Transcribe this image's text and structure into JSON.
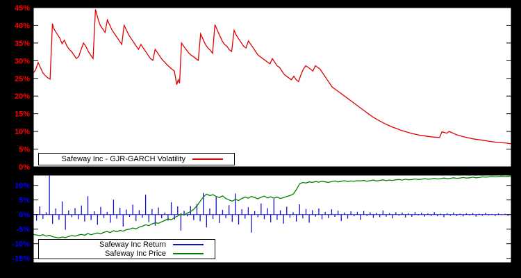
{
  "window": {
    "background_color": "#000000",
    "plot_background_color": "#ffffff"
  },
  "chart_data": [
    {
      "type": "line",
      "title": "Safeway Inc - GJR-GARCH Volatility",
      "xlabel": "",
      "ylabel": "",
      "ylim": [
        0,
        45
      ],
      "grid": false,
      "legend_position": "bottom-left",
      "tick_label_color": "#ff0000",
      "ytick_values": [
        0,
        5,
        10,
        15,
        20,
        25,
        30,
        35,
        40,
        45
      ],
      "ytick_labels": [
        "0%",
        "5%",
        "10%",
        "15%",
        "20%",
        "25%",
        "30%",
        "35%",
        "40%",
        "45%"
      ],
      "series": [
        {
          "name": "Safeway Inc - GJR-GARCH Volatility",
          "color": "#dd0000",
          "x_range": [
            0,
            100
          ],
          "points": [
            [
              0,
              26.5
            ],
            [
              0.5,
              27.5
            ],
            [
              1,
              29.5
            ],
            [
              1.5,
              28
            ],
            [
              2,
              26.5
            ],
            [
              2.5,
              25.8
            ],
            [
              3,
              25.2
            ],
            [
              3.5,
              24.8
            ],
            [
              4,
              40.5
            ],
            [
              4.3,
              39
            ],
            [
              5,
              37.5
            ],
            [
              5.5,
              36.5
            ],
            [
              6,
              34.8
            ],
            [
              6.5,
              35.8
            ],
            [
              7,
              34.2
            ],
            [
              7.5,
              33.2
            ],
            [
              8,
              32.6
            ],
            [
              8.5,
              31.6
            ],
            [
              9,
              30.6
            ],
            [
              9.5,
              31.2
            ],
            [
              10,
              33.2
            ],
            [
              10.5,
              35
            ],
            [
              11,
              34
            ],
            [
              11.5,
              32.6
            ],
            [
              12,
              31.6
            ],
            [
              12.5,
              30.6
            ],
            [
              13,
              44.5
            ],
            [
              13.3,
              43
            ],
            [
              13.6,
              41.5
            ],
            [
              14,
              40
            ],
            [
              14.5,
              39
            ],
            [
              15,
              38
            ],
            [
              15.5,
              41.5
            ],
            [
              16,
              40
            ],
            [
              16.5,
              38.6
            ],
            [
              17,
              37.6
            ],
            [
              17.5,
              36.6
            ],
            [
              18,
              35.6
            ],
            [
              18.5,
              34.6
            ],
            [
              19,
              40
            ],
            [
              19.5,
              38.6
            ],
            [
              20,
              37.2
            ],
            [
              20.5,
              36.2
            ],
            [
              21,
              35.2
            ],
            [
              21.5,
              34.2
            ],
            [
              22,
              33.2
            ],
            [
              22.5,
              34.6
            ],
            [
              23,
              33.6
            ],
            [
              23.5,
              32.6
            ],
            [
              24,
              31.6
            ],
            [
              24.5,
              30.6
            ],
            [
              25,
              30.1
            ],
            [
              25.5,
              33.2
            ],
            [
              26,
              32.2
            ],
            [
              26.5,
              31.2
            ],
            [
              27,
              30.2
            ],
            [
              27.5,
              29.6
            ],
            [
              28,
              28.8
            ],
            [
              28.5,
              28.2
            ],
            [
              29,
              27.6
            ],
            [
              29.5,
              27.1
            ],
            [
              30,
              23.2
            ],
            [
              30.3,
              24.6
            ],
            [
              30.6,
              23.6
            ],
            [
              31,
              35
            ],
            [
              31.5,
              34
            ],
            [
              32,
              33.1
            ],
            [
              32.5,
              32.2
            ],
            [
              33,
              31.6
            ],
            [
              33.5,
              31.1
            ],
            [
              34,
              30.6
            ],
            [
              34.5,
              30.1
            ],
            [
              35,
              37.6
            ],
            [
              35.5,
              36.1
            ],
            [
              36,
              34.6
            ],
            [
              36.5,
              33.6
            ],
            [
              37,
              33
            ],
            [
              37.5,
              32.1
            ],
            [
              38,
              40.2
            ],
            [
              38.5,
              38.6
            ],
            [
              39,
              37.1
            ],
            [
              39.5,
              35.6
            ],
            [
              40,
              34.6
            ],
            [
              40.5,
              34.1
            ],
            [
              41,
              33.1
            ],
            [
              41.5,
              32.6
            ],
            [
              42,
              38.6
            ],
            [
              42.5,
              37.1
            ],
            [
              43,
              36.1
            ],
            [
              43.5,
              35.1
            ],
            [
              44,
              34.1
            ],
            [
              44.5,
              33.6
            ],
            [
              45,
              35.6
            ],
            [
              45.5,
              34.6
            ],
            [
              46,
              33.6
            ],
            [
              46.5,
              32.6
            ],
            [
              47,
              31.6
            ],
            [
              47.5,
              31.1
            ],
            [
              48,
              30.6
            ],
            [
              48.5,
              30.1
            ],
            [
              49,
              29.6
            ],
            [
              49.5,
              29.1
            ],
            [
              50,
              30.6
            ],
            [
              50.5,
              29.6
            ],
            [
              51,
              28.6
            ],
            [
              51.5,
              28.1
            ],
            [
              52,
              27.1
            ],
            [
              52.5,
              26.1
            ],
            [
              53,
              25.6
            ],
            [
              53.5,
              25.1
            ],
            [
              54,
              24.6
            ],
            [
              54.5,
              25.6
            ],
            [
              55,
              24.6
            ],
            [
              55.5,
              24.1
            ],
            [
              56,
              26.1
            ],
            [
              56.5,
              27.6
            ],
            [
              57,
              28.6
            ],
            [
              57.5,
              28.1
            ],
            [
              58,
              27.6
            ],
            [
              58.5,
              27.1
            ],
            [
              59,
              28.6
            ],
            [
              59.5,
              28.1
            ],
            [
              60,
              27.6
            ],
            [
              60.5,
              26.6
            ],
            [
              61,
              25.6
            ],
            [
              61.5,
              24.6
            ],
            [
              62,
              23.6
            ],
            [
              62.5,
              22.6
            ],
            [
              63,
              22.1
            ],
            [
              63.5,
              21.6
            ],
            [
              64,
              21.1
            ],
            [
              64.5,
              20.6
            ],
            [
              65,
              20.1
            ],
            [
              66,
              19.1
            ],
            [
              67,
              18.1
            ],
            [
              68,
              17.1
            ],
            [
              69,
              16.1
            ],
            [
              70,
              15.1
            ],
            [
              71,
              14.1
            ],
            [
              72,
              13.3
            ],
            [
              73,
              12.6
            ],
            [
              74,
              11.9
            ],
            [
              75,
              11.3
            ],
            [
              76,
              10.8
            ],
            [
              77,
              10.3
            ],
            [
              78,
              9.9
            ],
            [
              79,
              9.5
            ],
            [
              80,
              9.2
            ],
            [
              81,
              8.9
            ],
            [
              82,
              8.7
            ],
            [
              83,
              8.5
            ],
            [
              84,
              8.4
            ],
            [
              85,
              8.3
            ],
            [
              85.5,
              9.9
            ],
            [
              86,
              9.7
            ],
            [
              86.5,
              9.5
            ],
            [
              87,
              10
            ],
            [
              87.5,
              9.7
            ],
            [
              88,
              9.4
            ],
            [
              88.5,
              9.1
            ],
            [
              89,
              8.9
            ],
            [
              90,
              8.5
            ],
            [
              91,
              8.2
            ],
            [
              92,
              7.9
            ],
            [
              93,
              7.7
            ],
            [
              94,
              7.5
            ],
            [
              95,
              7.3
            ],
            [
              96,
              7.1
            ],
            [
              97,
              6.9
            ],
            [
              98,
              6.8
            ],
            [
              99,
              6.7
            ],
            [
              100,
              6.5
            ]
          ]
        }
      ]
    },
    {
      "type": "mixed",
      "title": "",
      "xlabel": "",
      "ylabel": "",
      "ylim": [
        -16.5,
        13.5
      ],
      "grid": false,
      "legend_position": "bottom-left",
      "tick_label_color": "#0000ff",
      "ytick_values": [
        -15,
        -10,
        -5,
        0,
        5,
        10
      ],
      "ytick_labels": [
        "-15%",
        "-10%",
        "-5%",
        "0%",
        "5%",
        "10%"
      ],
      "series": [
        {
          "name": "Safeway Inc Return",
          "type": "bar",
          "color": "#1111cc",
          "values": [
            1.2,
            -2.1,
            2.8,
            -1.5,
            0.8,
            13.8,
            -3.2,
            2.1,
            -1.8,
            4.5,
            -5.2,
            1.4,
            -0.9,
            2.2,
            -1.6,
            3.1,
            -2.4,
            6.3,
            -1.9,
            1.1,
            -3.5,
            2.6,
            -1.2,
            0.9,
            -2.8,
            5.1,
            -1.4,
            2.3,
            -4.1,
            1.7,
            -0.8,
            3.4,
            -2.2,
            1.5,
            -1.1,
            6.8,
            -2.6,
            1.9,
            -3.8,
            2.4,
            -1.3,
            0.7,
            -2.1,
            4.2,
            -1.7,
            2.8,
            -5.5,
            1.3,
            -0.6,
            2.9,
            -1.9,
            3.6,
            -2.3,
            7.4,
            -4.4,
            2.1,
            -1.5,
            6.1,
            -2.9,
            1.6,
            -1.2,
            3.2,
            -2.5,
            7.2,
            -3.4,
            1.8,
            -1.4,
            2.5,
            -6.2,
            1.2,
            -0.9,
            3.8,
            -1.6,
            2.2,
            -2.7,
            5.4,
            -1.8,
            1.4,
            -3.1,
            2.7,
            -1.1,
            0.8,
            -2.4,
            3.5,
            -1.3,
            1.9,
            -2.8,
            1.5,
            -0.7,
            2.1,
            -1.6,
            0.9,
            -1.2,
            1.8,
            -0.8,
            1.3,
            -2.2,
            0.7,
            -1.4,
            1.1,
            -0.6,
            0.9,
            -1.8,
            1.2,
            -0.5,
            0.8,
            -1.1,
            0.6,
            -0.9,
            1.4,
            -0.7,
            0.5,
            -1.3,
            0.8,
            -0.4,
            0.7,
            -1.0,
            0.5,
            -0.8,
            0.9,
            -0.3,
            0.6,
            -0.7,
            0.4,
            -0.5,
            0.8,
            -0.6,
            0.3,
            -0.9,
            0.5,
            -0.4,
            0.7,
            -0.5,
            0.3,
            -0.6,
            0.4,
            -0.3,
            0.5,
            -0.7,
            0.3,
            -0.4,
            0.6,
            -0.3,
            0.2,
            -0.5,
            0.4,
            -0.2,
            0.3,
            -0.4,
            0.2
          ]
        },
        {
          "name": "Safeway Inc Price",
          "type": "line",
          "color": "#008000",
          "values": [
            -6.8,
            -7.0,
            -7.2,
            -6.9,
            -7.4,
            -7.1,
            -7.6,
            -7.8,
            -8.0,
            -7.7,
            -7.9,
            -7.5,
            -7.2,
            -7.4,
            -7.0,
            -6.8,
            -7.1,
            -6.5,
            -6.9,
            -6.6,
            -6.3,
            -6.6,
            -6.1,
            -5.8,
            -6.2,
            -5.5,
            -5.9,
            -5.4,
            -5.7,
            -5.2,
            -5.0,
            -4.6,
            -4.9,
            -4.3,
            -4.0,
            -3.5,
            -3.8,
            -3.2,
            -2.8,
            -3.0,
            -2.5,
            -2.0,
            -1.5,
            -1.8,
            -1.0,
            -0.5,
            0.2,
            -0.2,
            0.5,
            1.0,
            1.8,
            3.0,
            4.5,
            6.0,
            7.0,
            6.5,
            6.8,
            6.2,
            5.8,
            6.4,
            5.5,
            5.0,
            4.6,
            5.2,
            4.8,
            5.5,
            6.0,
            5.6,
            6.2,
            5.8,
            5.4,
            5.9,
            6.3,
            5.7,
            6.1,
            5.6,
            6.0,
            5.5,
            5.8,
            6.2,
            6.5,
            7.0,
            8.5,
            10.5,
            11.0,
            10.8,
            11.2,
            11.0,
            11.3,
            11.1,
            11.4,
            11.2,
            11.0,
            11.3,
            11.5,
            11.2,
            11.4,
            11.6,
            11.3,
            11.5,
            11.4,
            11.6,
            11.5,
            11.7,
            11.4,
            11.6,
            11.8,
            11.5,
            11.7,
            11.9,
            11.6,
            11.8,
            11.7,
            11.9,
            12.0,
            11.8,
            12.1,
            11.9,
            12.0,
            12.2,
            12.0,
            12.1,
            12.3,
            12.1,
            12.2,
            12.4,
            12.2,
            12.3,
            12.5,
            12.3,
            12.4,
            12.6,
            12.4,
            12.5,
            12.7,
            12.5,
            12.6,
            12.8,
            12.6,
            12.7,
            12.9,
            12.8,
            12.9,
            13.0,
            12.9,
            13.0,
            13.1,
            13.0,
            13.1,
            13.2
          ]
        }
      ]
    }
  ]
}
